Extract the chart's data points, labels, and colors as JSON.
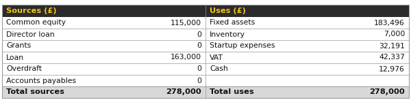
{
  "header_bg": "#2b2b2b",
  "header_text_color": "#f5c518",
  "row_bg": "#ffffff",
  "total_bg": "#d8d8d8",
  "border_color": "#999999",
  "text_color": "#111111",
  "font_size": 7.8,
  "header_font_size": 8.2,
  "total_font_size": 8.2,
  "col1_header": "Sources (£)",
  "col2_header": "Uses (£)",
  "sources": [
    {
      "label": "Common equity",
      "value": "115,000"
    },
    {
      "label": "Director loan",
      "value": "0"
    },
    {
      "label": "Grants",
      "value": "0"
    },
    {
      "label": "Loan",
      "value": "163,000"
    },
    {
      "label": "Overdraft",
      "value": "0"
    },
    {
      "label": "Accounts payables",
      "value": "0"
    }
  ],
  "uses": [
    {
      "label": "Fixed assets",
      "value": "183,496"
    },
    {
      "label": "Inventory",
      "value": "7,000"
    },
    {
      "label": "Startup expenses",
      "value": "32,191"
    },
    {
      "label": "VAT",
      "value": "42,337"
    },
    {
      "label": "Cash",
      "value": "12,976"
    },
    {
      "label": "",
      "value": ""
    }
  ],
  "total_sources_label": "Total sources",
  "total_sources_value": "278,000",
  "total_uses_label": "Total uses",
  "total_uses_value": "278,000"
}
